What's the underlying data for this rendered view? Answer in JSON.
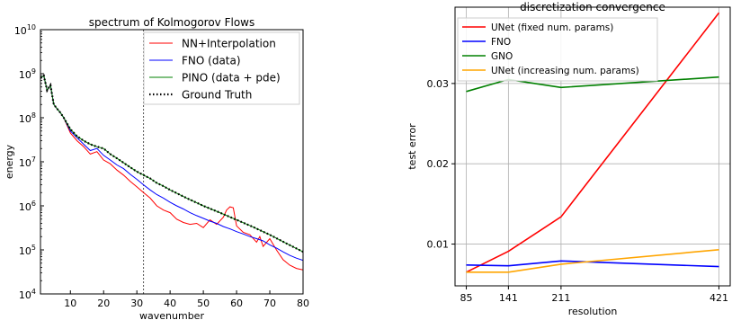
{
  "chart_data": [
    {
      "type": "line",
      "title": "spectrum of Kolmogorov Flows",
      "xlabel": "wavenumber",
      "ylabel": "energy",
      "xlim": [
        1,
        80
      ],
      "ylim_log10": [
        4,
        10
      ],
      "yscale": "log",
      "xticks": [
        10,
        20,
        30,
        40,
        50,
        60,
        70,
        80
      ],
      "xtick_labels": [
        "10",
        "20",
        "30",
        "40",
        "50",
        "60",
        "70",
        "80"
      ],
      "ytick_exponents": [
        4,
        5,
        6,
        7,
        8,
        9,
        10
      ],
      "ytick_base": "10",
      "vline_x": 32,
      "legend_position": "upper-right",
      "series": [
        {
          "name": "NN+Interpolation",
          "color": "#ff0000",
          "style": "solid",
          "x": [
            1,
            2,
            3,
            4,
            5,
            6,
            7,
            8,
            10,
            12,
            14,
            16,
            18,
            20,
            22,
            24,
            26,
            28,
            30,
            32,
            34,
            36,
            38,
            40,
            42,
            44,
            46,
            48,
            50,
            52,
            54,
            56,
            57,
            58,
            59,
            60,
            62,
            64,
            66,
            67,
            68,
            70,
            72,
            74,
            76,
            78,
            80
          ],
          "y": [
            800000000,
            900000000,
            420000000,
            550000000,
            200000000,
            160000000,
            130000000,
            100000000,
            45000000,
            30000000,
            22000000,
            15000000,
            17000000,
            11000000,
            9000000,
            6500000,
            5000000,
            3600000,
            2700000,
            2000000,
            1500000,
            1000000,
            800000,
            700000,
            500000,
            420000,
            380000,
            400000,
            320000,
            480000,
            380000,
            550000,
            800000,
            950000,
            900000,
            350000,
            250000,
            220000,
            150000,
            200000,
            120000,
            180000,
            100000,
            60000,
            45000,
            38000,
            35000
          ]
        },
        {
          "name": "FNO (data)",
          "color": "#0000ff",
          "style": "solid",
          "x": [
            1,
            2,
            3,
            4,
            5,
            6,
            7,
            8,
            10,
            12,
            14,
            16,
            18,
            20,
            22,
            24,
            26,
            28,
            30,
            32,
            34,
            36,
            38,
            40,
            42,
            44,
            46,
            48,
            50,
            52,
            54,
            56,
            58,
            60,
            62,
            64,
            66,
            68,
            70,
            72,
            74,
            76,
            78,
            80
          ],
          "y": [
            800000000,
            900000000,
            420000000,
            550000000,
            200000000,
            160000000,
            130000000,
            100000000,
            50000000,
            35000000,
            25000000,
            18000000,
            20000000,
            14000000,
            11000000,
            8500000,
            7000000,
            5200000,
            4000000,
            3000000,
            2300000,
            1800000,
            1500000,
            1200000,
            1000000,
            850000,
            700000,
            600000,
            520000,
            450000,
            400000,
            340000,
            300000,
            260000,
            230000,
            200000,
            180000,
            160000,
            130000,
            110000,
            90000,
            75000,
            65000,
            58000
          ]
        },
        {
          "name": "PINO (data + pde)",
          "color": "#008000",
          "style": "solid",
          "x": [
            1,
            2,
            3,
            4,
            5,
            6,
            7,
            8,
            10,
            12,
            14,
            16,
            18,
            20,
            22,
            24,
            26,
            28,
            30,
            32,
            34,
            36,
            38,
            40,
            45,
            50,
            55,
            60,
            65,
            70,
            75,
            80
          ],
          "y": [
            800000000,
            900000000,
            420000000,
            550000000,
            200000000,
            160000000,
            130000000,
            100000000,
            55000000,
            38000000,
            30000000,
            25000000,
            22000000,
            20000000,
            15000000,
            12000000,
            9500000,
            7500000,
            6000000,
            5000000,
            4200000,
            3300000,
            2800000,
            2300000,
            1500000,
            1000000,
            700000,
            480000,
            330000,
            220000,
            140000,
            90000
          ]
        },
        {
          "name": "Ground Truth",
          "color": "#000000",
          "style": "dotted",
          "x": [
            1,
            2,
            3,
            4,
            5,
            6,
            7,
            8,
            10,
            12,
            14,
            16,
            18,
            20,
            22,
            24,
            26,
            28,
            30,
            32,
            34,
            36,
            38,
            40,
            45,
            50,
            55,
            60,
            65,
            70,
            75,
            80
          ],
          "y": [
            800000000,
            900000000,
            420000000,
            550000000,
            200000000,
            160000000,
            130000000,
            100000000,
            55000000,
            38000000,
            30000000,
            25000000,
            22000000,
            20000000,
            15000000,
            12000000,
            9500000,
            7500000,
            6000000,
            5000000,
            4200000,
            3300000,
            2800000,
            2300000,
            1500000,
            1000000,
            700000,
            480000,
            330000,
            220000,
            140000,
            90000
          ]
        }
      ]
    },
    {
      "type": "line",
      "title": "discretization convergence",
      "xlabel": "resolution",
      "ylabel": "test error",
      "xlim": [
        70,
        436
      ],
      "ylim": [
        0.0048,
        0.0395
      ],
      "grid": true,
      "xticks": [
        85,
        141,
        211,
        421
      ],
      "xtick_labels": [
        "85",
        "141",
        "211",
        "421"
      ],
      "yticks": [
        0.01,
        0.02,
        0.03
      ],
      "ytick_labels": [
        "0.01",
        "0.02",
        "0.03"
      ],
      "legend_position": "upper-left",
      "series": [
        {
          "name": "UNet (fixed num. params)",
          "color": "#ff0000",
          "x": [
            85,
            141,
            211,
            421
          ],
          "y": [
            0.0065,
            0.0091,
            0.0134,
            0.0388
          ]
        },
        {
          "name": "FNO",
          "color": "#0000ff",
          "x": [
            85,
            141,
            211,
            421
          ],
          "y": [
            0.0074,
            0.0073,
            0.0079,
            0.0072
          ]
        },
        {
          "name": "GNO",
          "color": "#008000",
          "x": [
            85,
            141,
            211,
            421
          ],
          "y": [
            0.029,
            0.0305,
            0.0295,
            0.0308
          ]
        },
        {
          "name": "UNet (increasing num. params)",
          "color": "#ffa500",
          "x": [
            85,
            141,
            211,
            421
          ],
          "y": [
            0.0065,
            0.0065,
            0.0075,
            0.0093
          ]
        }
      ]
    }
  ]
}
